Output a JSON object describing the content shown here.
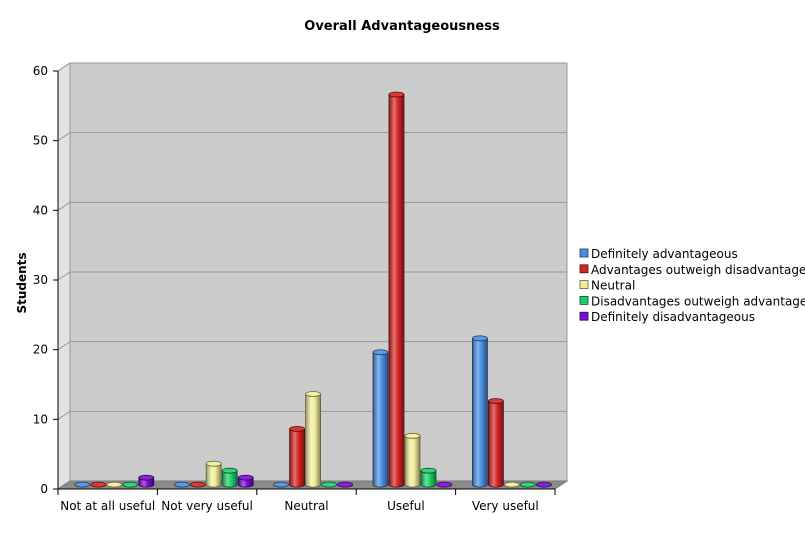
{
  "chart_data": {
    "type": "bar",
    "title": "Overall Advantageousness",
    "xlabel": "",
    "ylabel": "Students",
    "ylim": [
      0,
      60
    ],
    "yticks": [
      0,
      10,
      20,
      30,
      40,
      50,
      60
    ],
    "grid": true,
    "legend_position": "right",
    "categories": [
      "Not at all useful",
      "Not very useful",
      "Neutral",
      "Useful",
      "Very useful"
    ],
    "series": [
      {
        "name": "Definitely advantageous",
        "color": "#4a90e2",
        "values": [
          0,
          0,
          0,
          19,
          21
        ]
      },
      {
        "name": "Advantages outweigh disadvantages",
        "color": "#d42424",
        "values": [
          0,
          0,
          8,
          56,
          12
        ]
      },
      {
        "name": "Neutral",
        "color": "#f2ee9a",
        "values": [
          0,
          3,
          13,
          7,
          0
        ]
      },
      {
        "name": "Disadvantages outweigh advantages",
        "color": "#1bd06a",
        "values": [
          0,
          2,
          0,
          2,
          0
        ]
      },
      {
        "name": "Definitely disadvantageous",
        "color": "#7a0ad6",
        "values": [
          1,
          1,
          0,
          0,
          0
        ]
      }
    ]
  }
}
